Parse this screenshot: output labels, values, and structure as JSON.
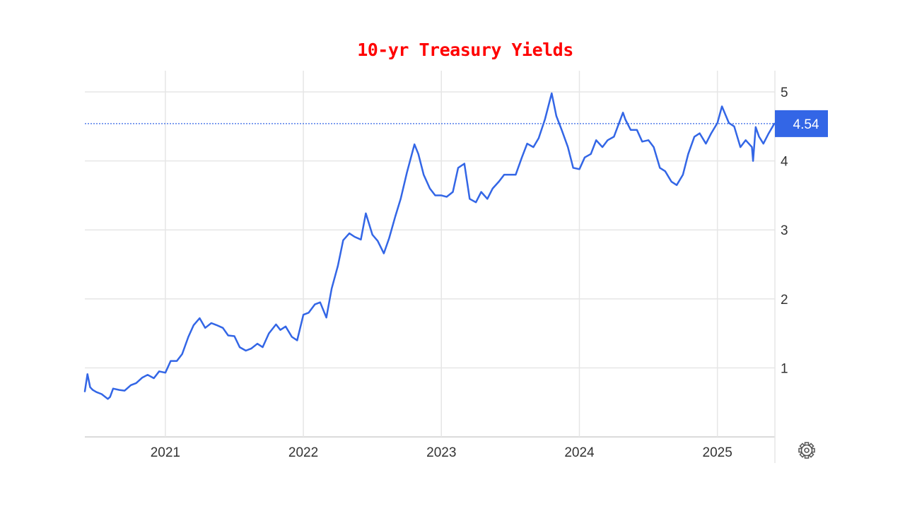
{
  "chart_data": {
    "type": "line",
    "title": "10-yr Treasury Yields",
    "xlabel": "",
    "ylabel": "",
    "x_ticks": [
      "2021",
      "2022",
      "2023",
      "2024",
      "2025"
    ],
    "y_ticks": [
      "1",
      "2",
      "3",
      "4",
      "5"
    ],
    "xlim": [
      "2020-06",
      "2025-06"
    ],
    "ylim": [
      0,
      5.1
    ],
    "grid": true,
    "y_axis_side": "right",
    "last_value": 4.54,
    "last_value_label": "4.54",
    "series": [
      {
        "x": [
          "2020-06-01",
          "2020-06-08",
          "2020-06-15",
          "2020-06-22",
          "2020-07-01",
          "2020-07-15",
          "2020-08-01",
          "2020-08-07",
          "2020-08-15",
          "2020-09-01",
          "2020-09-15",
          "2020-10-01",
          "2020-10-15",
          "2020-11-01",
          "2020-11-15",
          "2020-12-01",
          "2020-12-15",
          "2021-01-01",
          "2021-01-15",
          "2021-02-01",
          "2021-02-15",
          "2021-03-01",
          "2021-03-15",
          "2021-03-31",
          "2021-04-15",
          "2021-05-01",
          "2021-05-15",
          "2021-06-01",
          "2021-06-15",
          "2021-07-01",
          "2021-07-15",
          "2021-08-01",
          "2021-08-15",
          "2021-09-01",
          "2021-09-15",
          "2021-10-01",
          "2021-10-20",
          "2021-11-01",
          "2021-11-15",
          "2021-12-01",
          "2021-12-15",
          "2022-01-01",
          "2022-01-15",
          "2022-02-01",
          "2022-02-15",
          "2022-03-01",
          "2022-03-15",
          "2022-04-01",
          "2022-04-15",
          "2022-05-01",
          "2022-05-15",
          "2022-06-01",
          "2022-06-14",
          "2022-07-01",
          "2022-07-15",
          "2022-08-01",
          "2022-08-15",
          "2022-09-01",
          "2022-09-15",
          "2022-10-01",
          "2022-10-21",
          "2022-11-01",
          "2022-11-15",
          "2022-12-01",
          "2022-12-15",
          "2023-01-01",
          "2023-01-15",
          "2023-02-01",
          "2023-02-15",
          "2023-03-01",
          "2023-03-15",
          "2023-04-01",
          "2023-04-15",
          "2023-05-01",
          "2023-05-15",
          "2023-06-01",
          "2023-06-15",
          "2023-07-01",
          "2023-07-15",
          "2023-08-01",
          "2023-08-15",
          "2023-09-01",
          "2023-09-15",
          "2023-10-01",
          "2023-10-19",
          "2023-11-01",
          "2023-11-15",
          "2023-12-01",
          "2023-12-15",
          "2024-01-01",
          "2024-01-15",
          "2024-02-01",
          "2024-02-15",
          "2024-03-01",
          "2024-03-15",
          "2024-04-01",
          "2024-04-25",
          "2024-05-01",
          "2024-05-15",
          "2024-06-01",
          "2024-06-15",
          "2024-07-01",
          "2024-07-15",
          "2024-08-01",
          "2024-08-15",
          "2024-09-01",
          "2024-09-15",
          "2024-10-01",
          "2024-10-15",
          "2024-11-01",
          "2024-11-15",
          "2024-12-01",
          "2024-12-15",
          "2025-01-01",
          "2025-01-13",
          "2025-02-01",
          "2025-02-15",
          "2025-03-01",
          "2025-03-15",
          "2025-04-01",
          "2025-04-04",
          "2025-04-11",
          "2025-04-20",
          "2025-05-01",
          "2025-05-15",
          "2025-05-30"
        ],
        "values": [
          0.66,
          0.91,
          0.72,
          0.68,
          0.65,
          0.62,
          0.55,
          0.58,
          0.7,
          0.68,
          0.67,
          0.75,
          0.78,
          0.86,
          0.9,
          0.85,
          0.95,
          0.93,
          1.1,
          1.1,
          1.2,
          1.45,
          1.62,
          1.72,
          1.58,
          1.65,
          1.62,
          1.58,
          1.47,
          1.46,
          1.3,
          1.25,
          1.28,
          1.35,
          1.3,
          1.5,
          1.63,
          1.55,
          1.6,
          1.45,
          1.4,
          1.77,
          1.8,
          1.92,
          1.95,
          1.73,
          2.15,
          2.48,
          2.85,
          2.95,
          2.9,
          2.86,
          3.24,
          2.93,
          2.84,
          2.66,
          2.88,
          3.2,
          3.45,
          3.83,
          4.24,
          4.1,
          3.8,
          3.6,
          3.5,
          3.5,
          3.48,
          3.55,
          3.9,
          3.96,
          3.45,
          3.4,
          3.55,
          3.45,
          3.6,
          3.7,
          3.8,
          3.8,
          3.8,
          4.05,
          4.25,
          4.2,
          4.33,
          4.6,
          4.98,
          4.65,
          4.45,
          4.2,
          3.9,
          3.88,
          4.05,
          4.1,
          4.3,
          4.2,
          4.3,
          4.35,
          4.7,
          4.6,
          4.45,
          4.45,
          4.28,
          4.3,
          4.2,
          3.9,
          3.85,
          3.7,
          3.65,
          3.8,
          4.1,
          4.35,
          4.4,
          4.25,
          4.4,
          4.55,
          4.79,
          4.55,
          4.5,
          4.2,
          4.3,
          4.2,
          4.0,
          4.49,
          4.35,
          4.25,
          4.4,
          4.54
        ]
      }
    ]
  },
  "colors": {
    "line": "#3366e6",
    "title": "#ff0000",
    "grid": "#e6e6e6",
    "last_value_badge": "#3366e6",
    "reference_line": "#3366e6"
  },
  "settings_icon": "gear-icon"
}
